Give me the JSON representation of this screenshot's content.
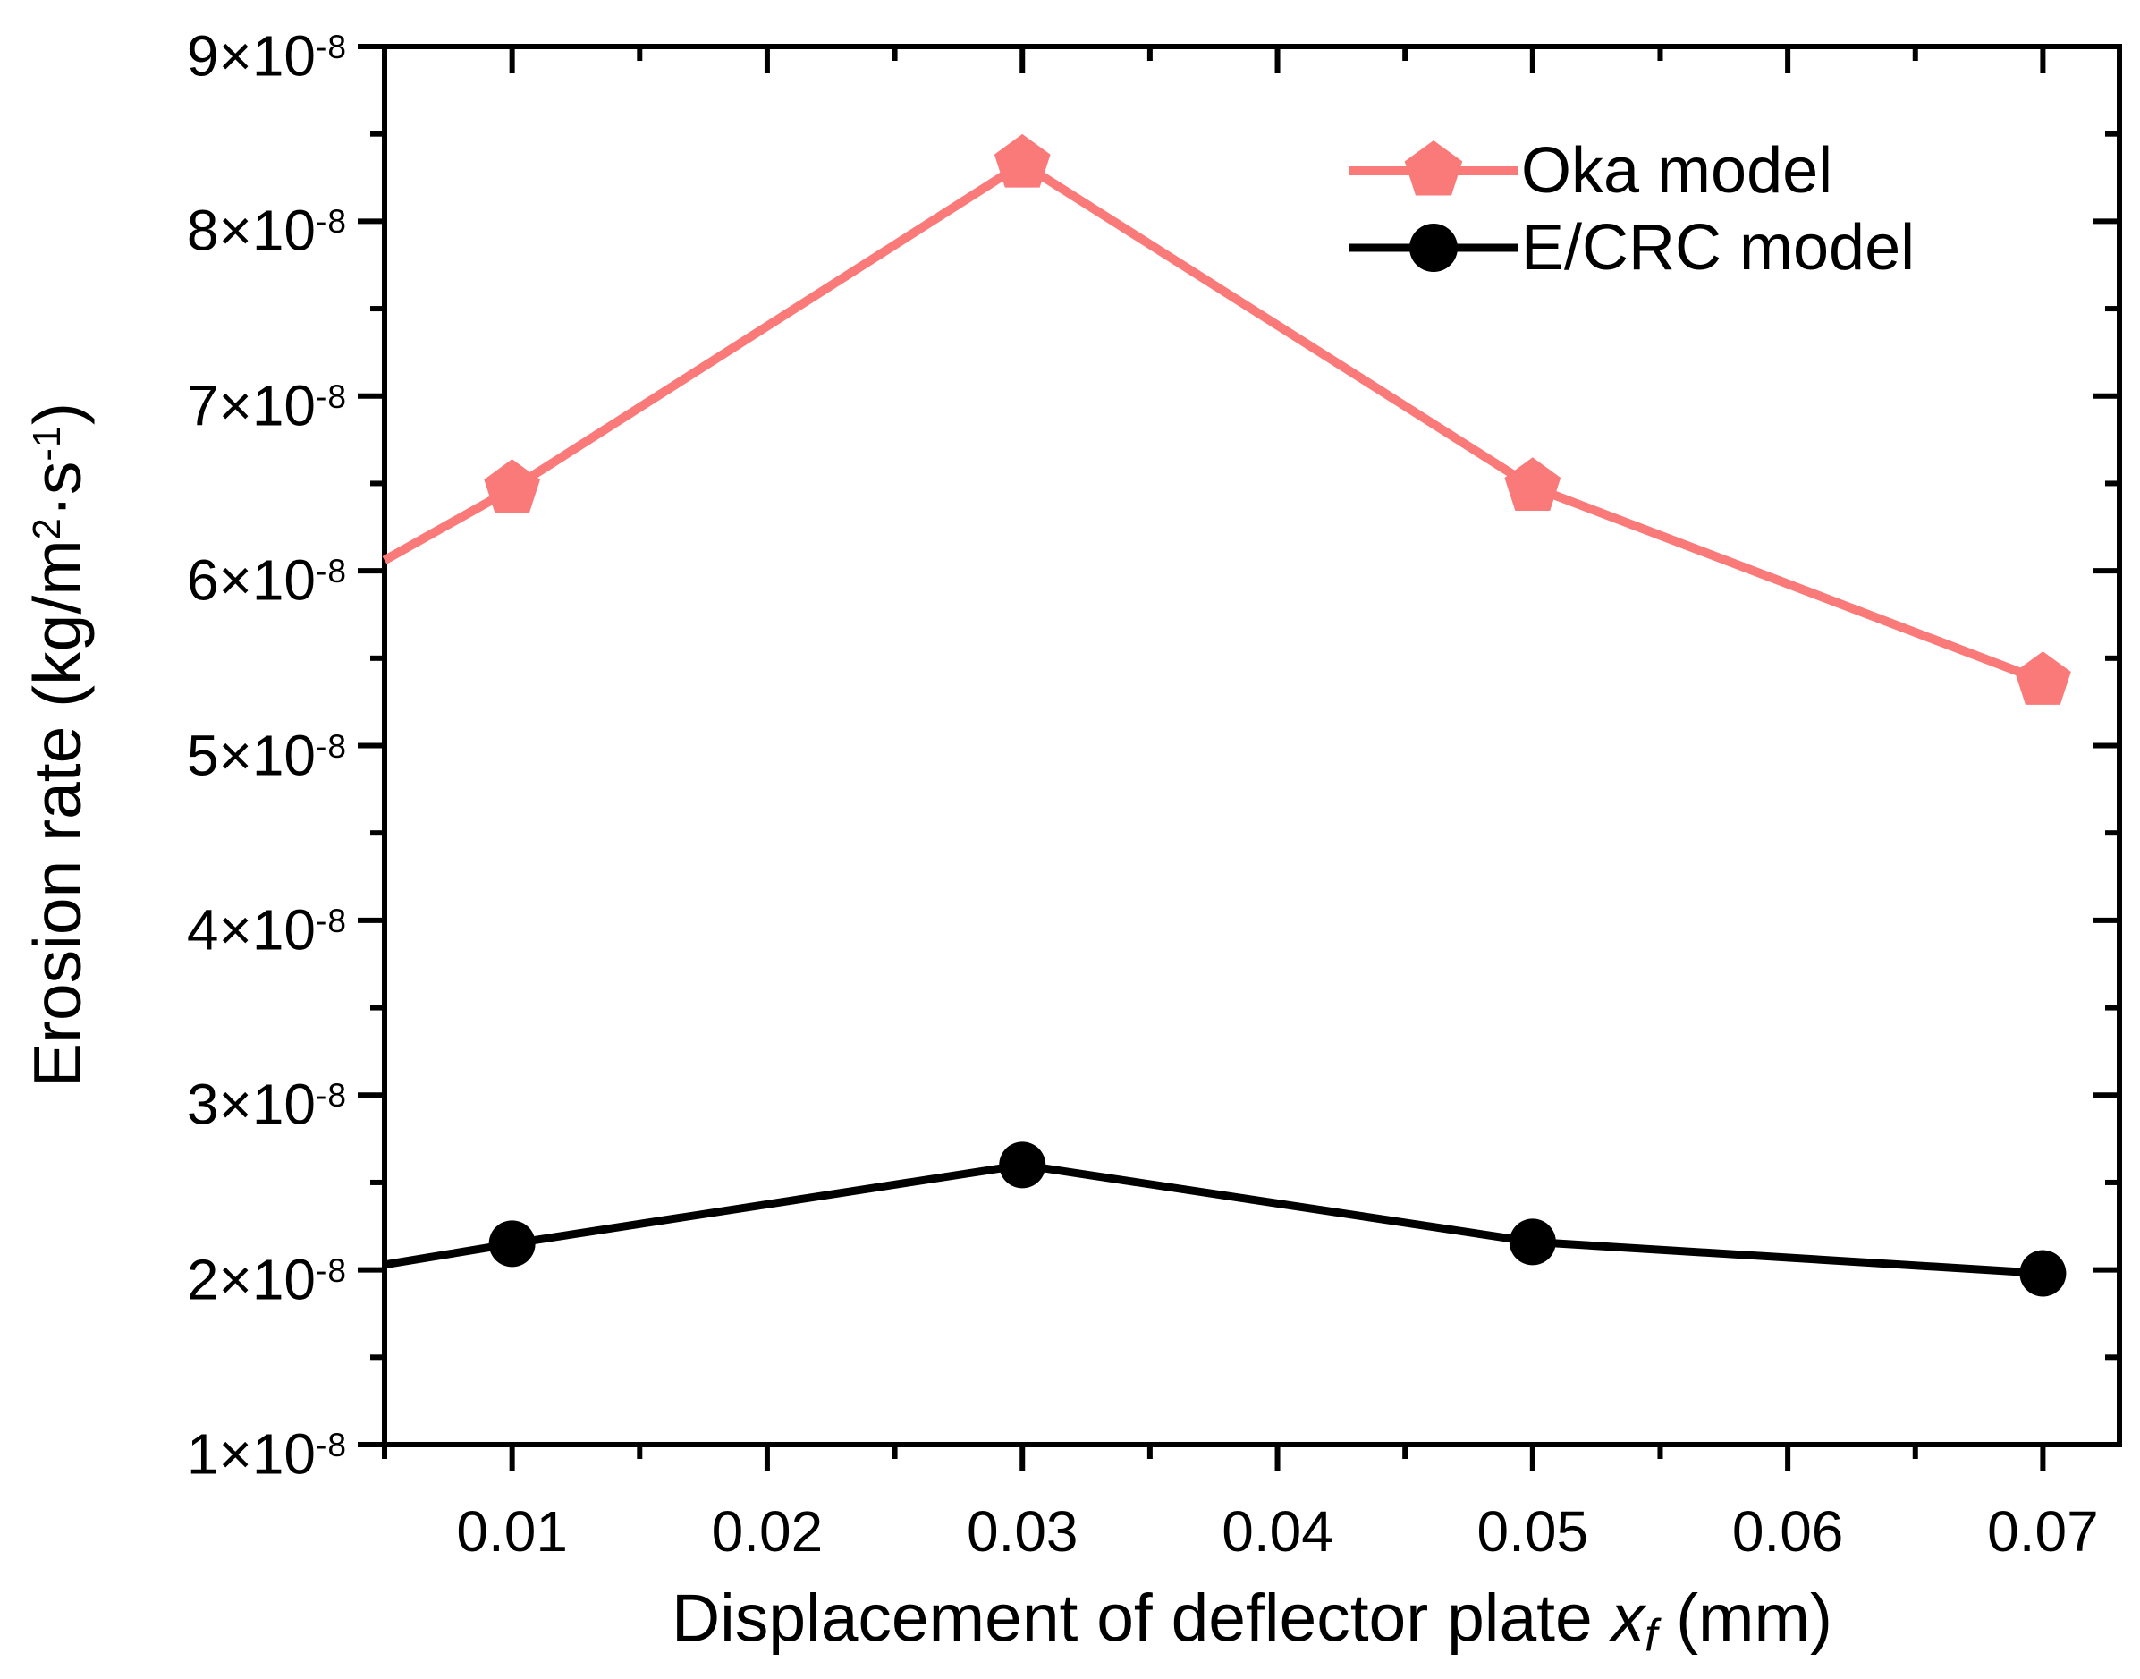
{
  "chart_data": {
    "type": "line",
    "title": "",
    "xlabel_parts": [
      {
        "text": "Displacement of deflector plate ",
        "style": "normal"
      },
      {
        "text": "x",
        "style": "italic"
      },
      {
        "text": "f",
        "style": "italic-sub"
      },
      {
        "text": " (mm)",
        "style": "normal"
      }
    ],
    "ylabel_parts": [
      {
        "text": "Erosion rate (kg/m",
        "style": "normal"
      },
      {
        "text": "2",
        "style": "sup"
      },
      {
        "text": "·s",
        "style": "normal"
      },
      {
        "text": "-1",
        "style": "sup"
      },
      {
        "text": ")",
        "style": "normal"
      }
    ],
    "x": [
      0.01,
      0.03,
      0.05,
      0.07
    ],
    "series": [
      {
        "name": "Oka model",
        "color": "#fa7a7a",
        "marker": "pentagon",
        "line_width": 10,
        "marker_size": 33,
        "values": [
          6.47e-08,
          8.33e-08,
          6.48e-08,
          5.37e-08
        ],
        "left_edge_value": 6.06e-08
      },
      {
        "name": "E/CRC model",
        "color": "#000000",
        "marker": "circle",
        "line_width": 9,
        "marker_size": 26,
        "values": [
          2.15e-08,
          2.6e-08,
          2.16e-08,
          1.98e-08
        ],
        "left_edge_value": 2.03e-08
      }
    ],
    "xlim": [
      0.005,
      0.073
    ],
    "ylim": [
      1e-08,
      9e-08
    ],
    "x_ticks": [
      0.01,
      0.02,
      0.03,
      0.04,
      0.05,
      0.06,
      0.07
    ],
    "x_tick_labels": [
      "0.01",
      "0.02",
      "0.03",
      "0.04",
      "0.05",
      "0.06",
      "0.07"
    ],
    "x_minor_ticks": [
      0.005,
      0.015,
      0.025,
      0.035,
      0.045,
      0.055,
      0.065
    ],
    "y_tick_mantissas": [
      "9",
      "8",
      "7",
      "6",
      "5",
      "4",
      "3",
      "2",
      "1"
    ],
    "y_tick_values": [
      9e-08,
      8e-08,
      7e-08,
      6e-08,
      5e-08,
      4e-08,
      3e-08,
      2e-08,
      1e-08
    ],
    "y_tick_suffix": "×10",
    "y_tick_exponent": "-8",
    "y_minor_ticks": [
      8.5e-08,
      7.5e-08,
      6.5e-08,
      5.5e-08,
      4.5e-08,
      3.5e-08,
      2.5e-08,
      1.5e-08
    ],
    "legend": {
      "position": "top-right-inside",
      "entries": [
        "Oka model",
        "E/CRC model"
      ]
    },
    "grid": false,
    "background": "#ffffff",
    "axis_color": "#000000"
  }
}
